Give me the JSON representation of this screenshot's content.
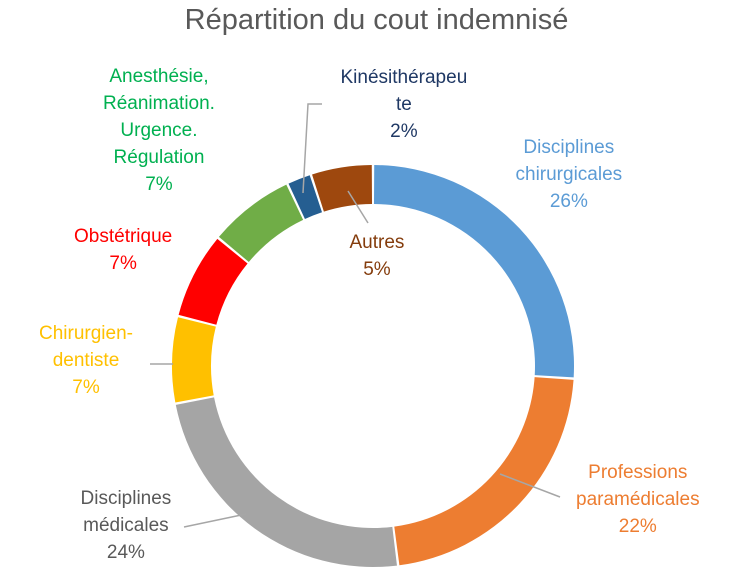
{
  "chart_data": {
    "type": "pie",
    "title": "Répartition du cout indemnisé",
    "series": [
      {
        "label_lines": [
          "Disciplines",
          "chirurgicales"
        ],
        "value": 26,
        "value_label": "26%",
        "color": "#5B9BD5"
      },
      {
        "label_lines": [
          "Professions",
          "paramédicales"
        ],
        "value": 22,
        "value_label": "22%",
        "color": "#ED7D31"
      },
      {
        "label_lines": [
          "Disciplines",
          "médicales"
        ],
        "value": 24,
        "value_label": "24%",
        "color": "#A5A5A5"
      },
      {
        "label_lines": [
          "Chirurgien-",
          "dentiste"
        ],
        "value": 7,
        "value_label": "7%",
        "color": "#FFC000"
      },
      {
        "label_lines": [
          "Obstétrique"
        ],
        "value": 7,
        "value_label": "7%",
        "color": "#FF0000"
      },
      {
        "label_lines": [
          "Anesthésie,",
          "Réanimation.",
          "Urgence.",
          "Régulation"
        ],
        "value": 7,
        "value_label": "7%",
        "color": "#70AD47"
      },
      {
        "label_lines": [
          "Kinésithérapeu",
          "te"
        ],
        "value": 2,
        "value_label": "2%",
        "color": "#255E91"
      },
      {
        "label_lines": [
          "Autres"
        ],
        "value": 5,
        "value_label": "5%",
        "color": "#9E480E"
      }
    ],
    "label_colors": [
      "#5B9BD5",
      "#ED7D31",
      "#595959",
      "#FFC000",
      "#FF0000",
      "#00B050",
      "#1F3864",
      "#843C0C"
    ],
    "legend": "none",
    "label_style": "outside with leader lines"
  }
}
